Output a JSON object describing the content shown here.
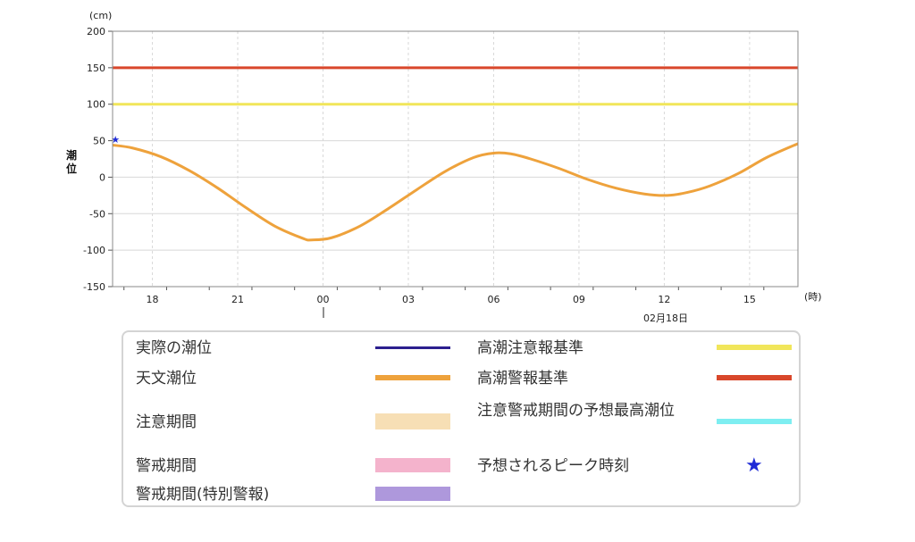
{
  "chart_data": {
    "type": "line",
    "y_unit": "(cm)",
    "ylabel": "潮位",
    "x_unit": "(時)",
    "ylim": [
      -150,
      200
    ],
    "yticks": [
      200,
      150,
      100,
      50,
      0,
      -50,
      -100,
      -150
    ],
    "x_start_hour": 16.6,
    "x_end_hour": 40.7,
    "xticks": [
      {
        "hour": 18,
        "label": "18"
      },
      {
        "hour": 21,
        "label": "21"
      },
      {
        "hour": 24,
        "label": "00"
      },
      {
        "hour": 27,
        "label": "03"
      },
      {
        "hour": 30,
        "label": "06"
      },
      {
        "hour": 33,
        "label": "09"
      },
      {
        "hour": 36,
        "label": "12"
      },
      {
        "hour": 39,
        "label": "15"
      }
    ],
    "date_label": "02月18日",
    "reference_lines": [
      {
        "name": "高潮警報基準",
        "value": 150,
        "color": "#d9472b"
      },
      {
        "name": "高潮注意報基準",
        "value": 100,
        "color": "#f1e65a"
      }
    ],
    "series": [
      {
        "name": "天文潮位",
        "color": "#eea23c",
        "x": [
          16.6,
          17.3,
          18.3,
          19.3,
          20.3,
          21.3,
          22.3,
          23.3,
          23.6,
          24.3,
          25.3,
          26.3,
          27.3,
          28.3,
          29.3,
          30.0,
          30.6,
          31.3,
          32.3,
          33.3,
          34.3,
          35.3,
          36.1,
          36.8,
          37.6,
          38.6,
          39.6,
          40.7
        ],
        "y": [
          44,
          40,
          28,
          9,
          -15,
          -42,
          -67,
          -84,
          -86,
          -83,
          -67,
          -43,
          -17,
          8,
          27,
          33,
          32,
          25,
          12,
          -3,
          -15,
          -23,
          -25,
          -21,
          -12,
          5,
          27,
          46
        ]
      }
    ],
    "peak_marker": {
      "name": "予想されるピーク時刻",
      "x": 16.7,
      "y": 52,
      "color": "#1f2bd6"
    }
  },
  "legend": {
    "items": [
      {
        "label": "実際の潮位",
        "color": "#2c1f8e",
        "style": "line"
      },
      {
        "label": "天文潮位",
        "color": "#eea23c",
        "style": "thick"
      },
      {
        "label": "注意期間",
        "color": "#f7dfb5",
        "style": "band"
      },
      {
        "label": "警戒期間",
        "color": "#f4b3cc",
        "style": "band"
      },
      {
        "label": "警戒期間(特別警報)",
        "color": "#ae98dc",
        "style": "band"
      },
      {
        "label": "高潮注意報基準",
        "color": "#f1e65a",
        "style": "thick"
      },
      {
        "label": "高潮警報基準",
        "color": "#d9472b",
        "style": "thick"
      },
      {
        "label": "注意警戒期間の予想最高潮位",
        "color": "#7eeef1",
        "style": "thick"
      },
      {
        "label": "予想されるピーク時刻",
        "color": "#1f2bd6",
        "style": "star",
        "glyph": "★"
      }
    ]
  }
}
